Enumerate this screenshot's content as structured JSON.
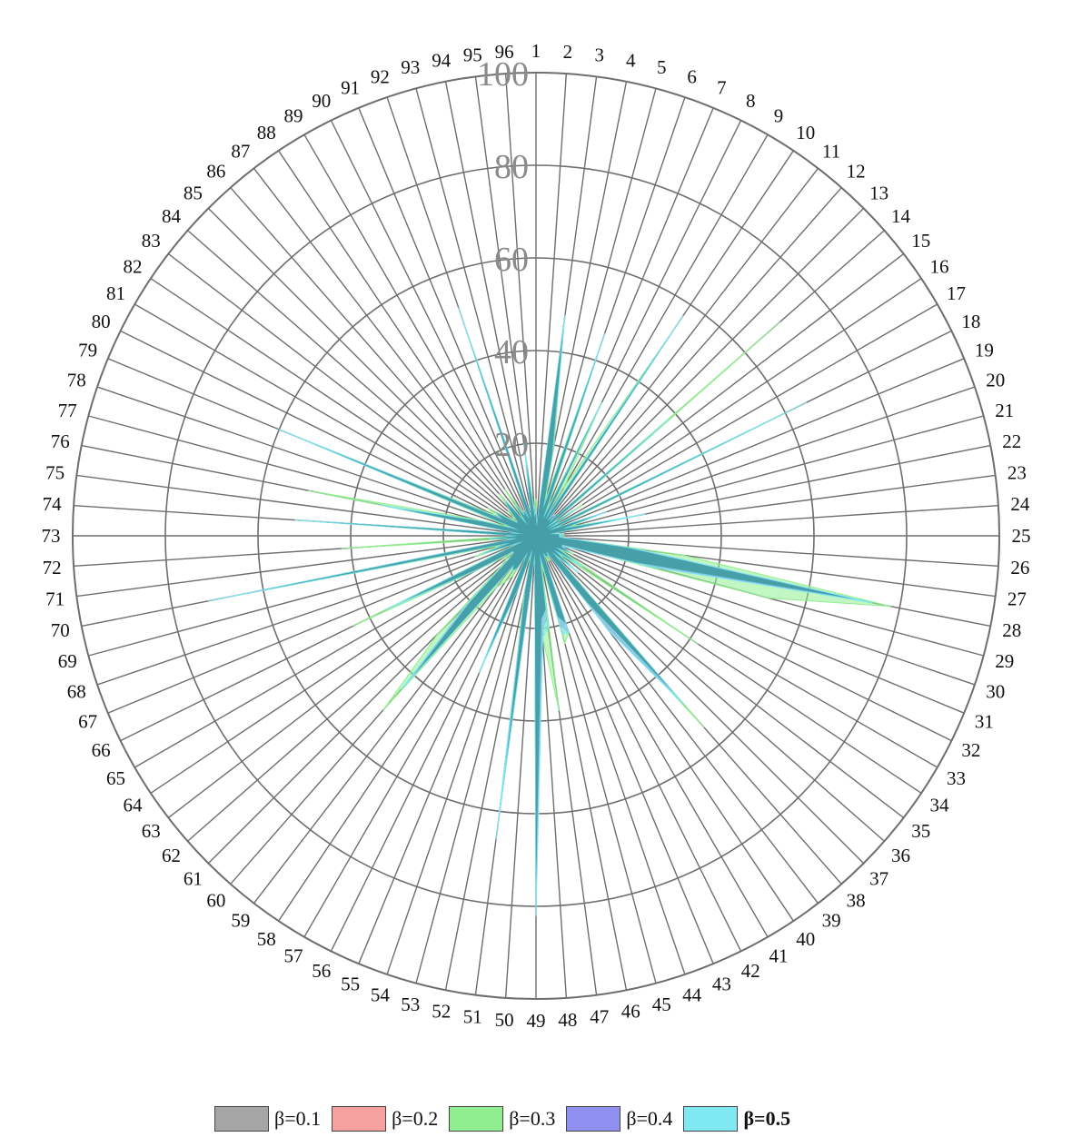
{
  "chart_data": {
    "type": "radar",
    "categories": [
      "1",
      "2",
      "3",
      "4",
      "5",
      "6",
      "7",
      "8",
      "9",
      "10",
      "11",
      "12",
      "13",
      "14",
      "15",
      "16",
      "17",
      "18",
      "19",
      "20",
      "21",
      "22",
      "23",
      "24",
      "25",
      "26",
      "27",
      "28",
      "29",
      "30",
      "31",
      "32",
      "33",
      "34",
      "35",
      "36",
      "37",
      "38",
      "39",
      "40",
      "41",
      "42",
      "43",
      "44",
      "45",
      "46",
      "47",
      "48",
      "49",
      "50",
      "51",
      "52",
      "53",
      "54",
      "55",
      "56",
      "57",
      "58",
      "59",
      "60",
      "61",
      "62",
      "63",
      "64",
      "65",
      "66",
      "67",
      "68",
      "69",
      "70",
      "71",
      "72",
      "73",
      "74",
      "75",
      "76",
      "77",
      "78",
      "79",
      "80",
      "81",
      "82",
      "83",
      "84",
      "85",
      "86",
      "87",
      "88",
      "89",
      "90",
      "91",
      "92",
      "93",
      "94",
      "95",
      "96"
    ],
    "rlim": [
      0,
      100
    ],
    "ticks": [
      "20",
      "40",
      "60",
      "80",
      "100"
    ],
    "grid": true,
    "legend_position": "bottom",
    "series": [
      {
        "name": "β=0.1",
        "color": "#a6a6a6",
        "values": [
          5,
          2,
          45,
          18,
          6,
          42,
          4,
          30,
          4,
          52,
          4,
          6,
          4,
          34,
          3,
          10,
          3,
          56,
          3,
          14,
          6,
          18,
          3,
          5,
          5,
          5,
          20,
          70,
          22,
          8,
          6,
          8,
          5,
          10,
          5,
          10,
          5,
          45,
          22,
          4,
          5,
          5,
          4,
          20,
          18,
          4,
          16,
          18,
          78,
          4,
          62,
          12,
          3,
          12,
          28,
          4,
          8,
          9,
          8,
          40,
          20,
          8,
          6,
          6,
          14,
          32,
          3,
          12,
          6,
          68,
          4,
          10,
          4,
          48,
          3,
          30,
          12,
          4,
          55,
          8,
          10,
          5,
          5,
          6,
          8,
          10,
          3,
          8,
          5,
          6,
          4,
          48,
          4,
          6,
          18,
          4
        ]
      },
      {
        "name": "β=0.2",
        "color": "#f7a0a0",
        "values": [
          6,
          2,
          46,
          18,
          6,
          43,
          4,
          31,
          4,
          53,
          4,
          6,
          4,
          35,
          3,
          10,
          3,
          57,
          3,
          15,
          6,
          19,
          3,
          5,
          5,
          5,
          21,
          71,
          23,
          8,
          6,
          8,
          5,
          11,
          5,
          11,
          5,
          46,
          23,
          4,
          5,
          5,
          4,
          21,
          19,
          4,
          17,
          19,
          79,
          4,
          63,
          12,
          3,
          12,
          29,
          4,
          8,
          9,
          8,
          41,
          21,
          8,
          6,
          6,
          14,
          33,
          3,
          12,
          6,
          69,
          4,
          10,
          4,
          49,
          3,
          31,
          12,
          4,
          56,
          8,
          10,
          5,
          5,
          6,
          8,
          10,
          3,
          8,
          5,
          6,
          4,
          49,
          4,
          6,
          19,
          4
        ]
      },
      {
        "name": "β=0.3",
        "color": "#90ee90",
        "values": [
          8,
          2,
          45,
          20,
          8,
          44,
          6,
          32,
          12,
          54,
          4,
          6,
          4,
          70,
          4,
          12,
          4,
          60,
          4,
          14,
          8,
          18,
          4,
          6,
          6,
          6,
          32,
          78,
          52,
          6,
          6,
          9,
          6,
          42,
          6,
          12,
          6,
          55,
          18,
          4,
          6,
          6,
          4,
          22,
          24,
          6,
          38,
          22,
          75,
          4,
          50,
          14,
          4,
          12,
          30,
          4,
          10,
          12,
          14,
          50,
          30,
          10,
          8,
          8,
          15,
          44,
          4,
          14,
          8,
          64,
          4,
          42,
          4,
          52,
          3,
          50,
          14,
          6,
          52,
          10,
          12,
          6,
          6,
          8,
          8,
          12,
          4,
          12,
          6,
          6,
          4,
          45,
          4,
          6,
          16,
          6
        ]
      },
      {
        "name": "β=0.4",
        "color": "#9090f0",
        "values": [
          6,
          2,
          47,
          18,
          6,
          44,
          4,
          31,
          4,
          55,
          4,
          6,
          4,
          36,
          3,
          10,
          3,
          60,
          3,
          16,
          6,
          20,
          3,
          6,
          5,
          6,
          22,
          72,
          24,
          8,
          6,
          8,
          5,
          12,
          5,
          12,
          5,
          47,
          24,
          4,
          5,
          5,
          4,
          22,
          20,
          4,
          18,
          20,
          76,
          4,
          64,
          12,
          3,
          12,
          30,
          4,
          8,
          9,
          8,
          42,
          22,
          8,
          6,
          6,
          14,
          35,
          3,
          12,
          6,
          70,
          4,
          10,
          4,
          50,
          3,
          32,
          12,
          4,
          58,
          8,
          10,
          5,
          5,
          6,
          8,
          10,
          3,
          8,
          5,
          6,
          4,
          50,
          4,
          6,
          19,
          4
        ]
      },
      {
        "name": "β=0.5",
        "color": "#7fe8f0",
        "values": [
          6,
          2,
          48,
          18,
          6,
          46,
          4,
          32,
          4,
          57,
          4,
          6,
          4,
          38,
          3,
          10,
          3,
          65,
          3,
          16,
          6,
          24,
          3,
          6,
          5,
          6,
          22,
          74,
          26,
          8,
          6,
          8,
          5,
          12,
          5,
          12,
          5,
          48,
          26,
          4,
          5,
          5,
          4,
          22,
          22,
          4,
          20,
          22,
          82,
          4,
          66,
          12,
          3,
          12,
          32,
          4,
          8,
          9,
          8,
          44,
          22,
          8,
          6,
          6,
          14,
          36,
          3,
          12,
          6,
          72,
          4,
          10,
          4,
          52,
          3,
          34,
          12,
          4,
          60,
          8,
          10,
          5,
          5,
          6,
          8,
          10,
          3,
          8,
          5,
          6,
          4,
          52,
          4,
          6,
          20,
          4
        ]
      }
    ]
  }
}
